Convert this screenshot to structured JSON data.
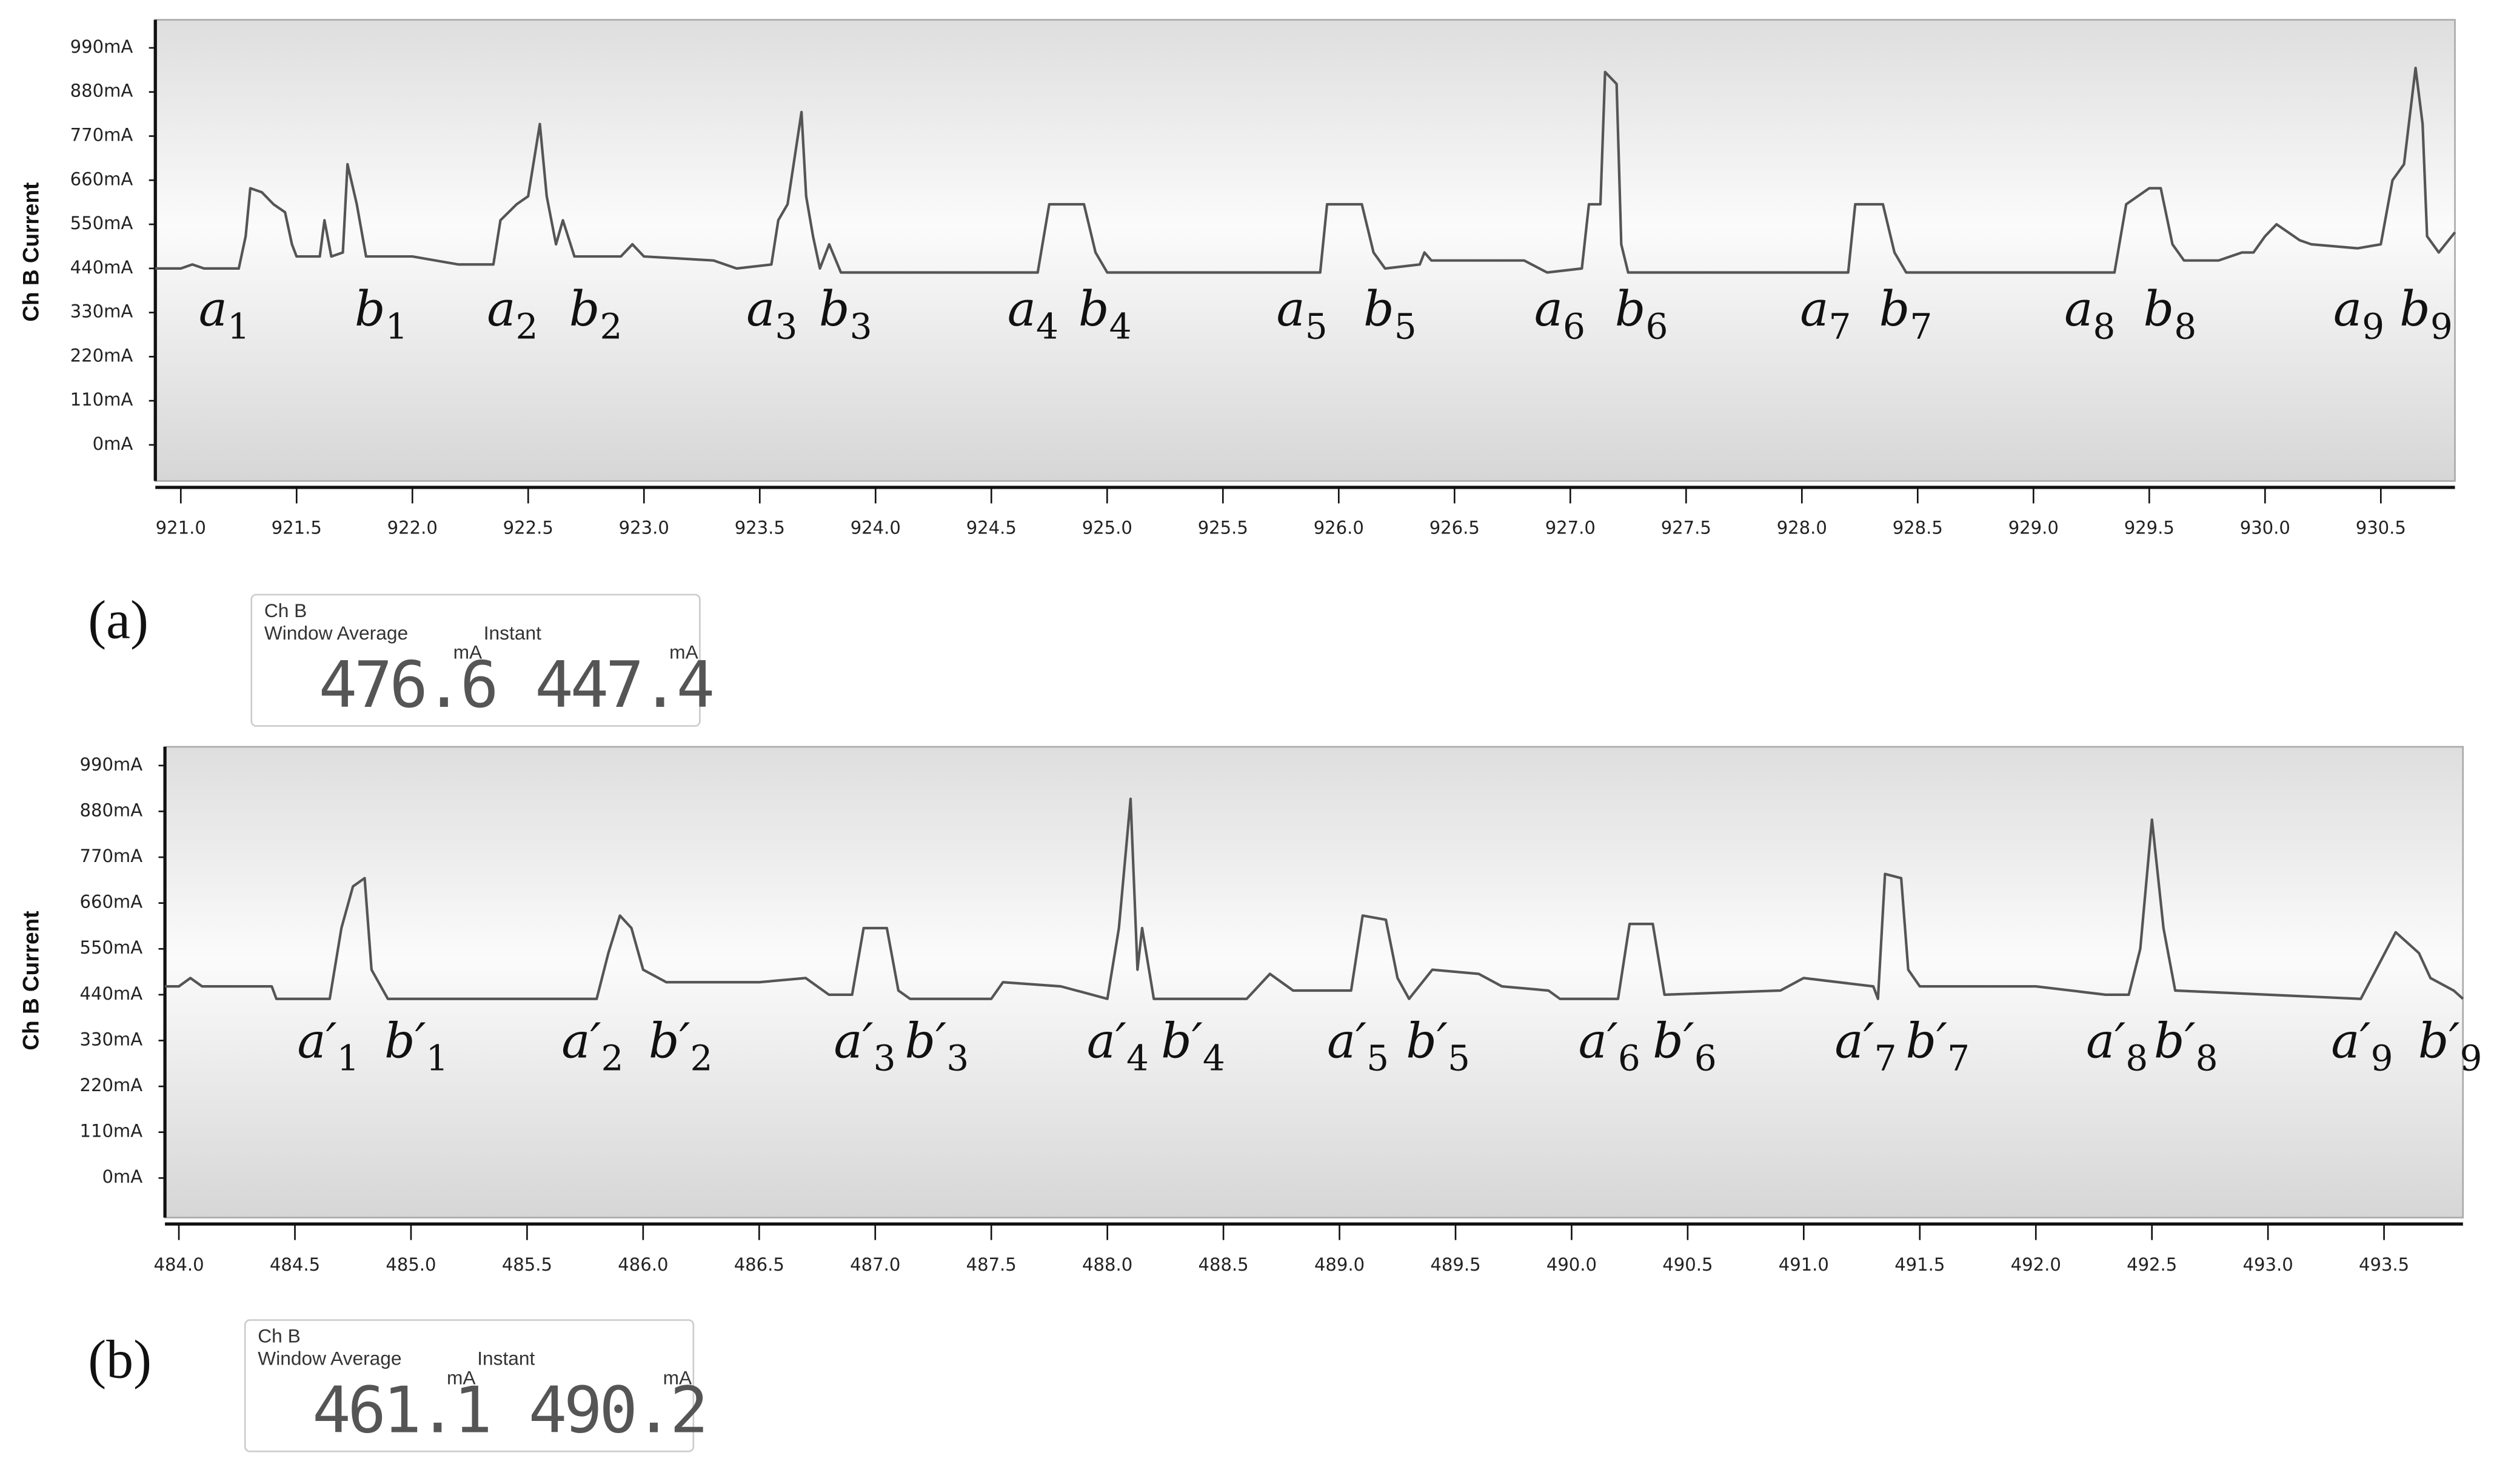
{
  "chart_data": [
    {
      "type": "line",
      "panel_label": "(a)",
      "y_label": "Ch B Current",
      "color": "#555555",
      "ylim": [
        -90,
        1060
      ],
      "yticks": [
        {
          "value": 990,
          "label": "990mA"
        },
        {
          "value": 880,
          "label": "880mA"
        },
        {
          "value": 770,
          "label": "770mA"
        },
        {
          "value": 660,
          "label": "660mA"
        },
        {
          "value": 550,
          "label": "550mA"
        },
        {
          "value": 440,
          "label": "440mA"
        },
        {
          "value": 330,
          "label": "330mA"
        },
        {
          "value": 220,
          "label": "220mA"
        },
        {
          "value": 110,
          "label": "110mA"
        },
        {
          "value": 0,
          "label": "0mA"
        }
      ],
      "xlim": [
        920.89,
        930.82
      ],
      "xticks": [
        {
          "value": 921,
          "label": "921.0"
        },
        921.5,
        {
          "value": 922,
          "label": "922.0"
        },
        922.5,
        {
          "value": 923,
          "label": "923.0"
        },
        923.5,
        {
          "value": 924,
          "label": "924.0"
        },
        924.5,
        {
          "value": 925,
          "label": "925.0"
        },
        925.5,
        {
          "value": 926,
          "label": "926.0"
        },
        926.5,
        {
          "value": 927,
          "label": "927.0"
        },
        927.5,
        {
          "value": 928,
          "label": "928.0"
        },
        928.5,
        {
          "value": 929,
          "label": "929.0"
        },
        929.5,
        {
          "value": 930,
          "label": "930.0"
        },
        930.5
      ],
      "x": [
        920.89,
        921.0,
        921.05,
        921.1,
        921.25,
        921.28,
        921.3,
        921.35,
        921.4,
        921.45,
        921.48,
        921.5,
        921.6,
        921.62,
        921.65,
        921.7,
        921.72,
        921.76,
        921.8,
        922.0,
        922.2,
        922.35,
        922.38,
        922.45,
        922.5,
        922.55,
        922.58,
        922.62,
        922.65,
        922.7,
        922.9,
        922.95,
        923.0,
        923.3,
        923.4,
        923.55,
        923.58,
        923.62,
        923.68,
        923.7,
        923.73,
        923.76,
        923.8,
        923.85,
        924.0,
        924.7,
        924.75,
        924.9,
        924.95,
        925.0,
        925.5,
        925.92,
        925.95,
        926.1,
        926.15,
        926.2,
        926.35,
        926.37,
        926.4,
        926.8,
        926.9,
        927.05,
        927.08,
        927.13,
        927.15,
        927.2,
        927.22,
        927.25,
        928.2,
        928.23,
        928.35,
        928.4,
        928.45,
        929.35,
        929.4,
        929.5,
        929.55,
        929.6,
        929.65,
        929.8,
        929.9,
        929.95,
        930.0,
        930.05,
        930.15,
        930.2,
        930.4,
        930.5,
        930.55,
        930.6,
        930.65,
        930.68,
        930.7,
        930.75,
        930.82
      ],
      "values": [
        440,
        440,
        450,
        440,
        440,
        520,
        640,
        630,
        600,
        580,
        500,
        470,
        470,
        560,
        470,
        480,
        700,
        600,
        470,
        470,
        450,
        450,
        560,
        600,
        620,
        800,
        620,
        500,
        560,
        470,
        470,
        500,
        470,
        460,
        440,
        450,
        560,
        600,
        830,
        620,
        520,
        440,
        500,
        430,
        430,
        430,
        600,
        600,
        480,
        430,
        430,
        430,
        600,
        600,
        480,
        440,
        450,
        480,
        460,
        460,
        430,
        440,
        600,
        600,
        930,
        900,
        500,
        430,
        430,
        600,
        600,
        480,
        430,
        430,
        600,
        640,
        640,
        500,
        460,
        460,
        480,
        480,
        520,
        550,
        510,
        500,
        490,
        500,
        660,
        700,
        940,
        800,
        520,
        480,
        530
      ],
      "annotations": [
        {
          "text": "a",
          "sub": "1"
        },
        {
          "text": "b",
          "sub": "1"
        },
        {
          "text": "a",
          "sub": "2"
        },
        {
          "text": "b",
          "sub": "2"
        },
        {
          "text": "a",
          "sub": "3"
        },
        {
          "text": "b",
          "sub": "3"
        },
        {
          "text": "a",
          "sub": "4"
        },
        {
          "text": "b",
          "sub": "4"
        },
        {
          "text": "a",
          "sub": "5"
        },
        {
          "text": "b",
          "sub": "5"
        },
        {
          "text": "a",
          "sub": "6"
        },
        {
          "text": "b",
          "sub": "6"
        },
        {
          "text": "a",
          "sub": "7"
        },
        {
          "text": "b",
          "sub": "7"
        },
        {
          "text": "a",
          "sub": "8"
        },
        {
          "text": "b",
          "sub": "8"
        },
        {
          "text": "a",
          "sub": "9"
        },
        {
          "text": "b",
          "sub": "9"
        }
      ],
      "readout": {
        "title": "Ch B",
        "average_label": "Window Average",
        "average": 476.6,
        "instant_label": "Instant",
        "instant": 447.4,
        "unit": "mA"
      }
    },
    {
      "type": "line",
      "panel_label": "(b)",
      "y_label": "Ch B Current",
      "color": "#555555",
      "ylim": [
        -95,
        1035
      ],
      "yticks": [
        {
          "value": 990,
          "label": "990mA"
        },
        {
          "value": 880,
          "label": "880mA"
        },
        {
          "value": 770,
          "label": "770mA"
        },
        {
          "value": 660,
          "label": "660mA"
        },
        {
          "value": 550,
          "label": "550mA"
        },
        {
          "value": 440,
          "label": "440mA"
        },
        {
          "value": 330,
          "label": "330mA"
        },
        {
          "value": 220,
          "label": "220mA"
        },
        {
          "value": 110,
          "label": "110mA"
        },
        {
          "value": 0,
          "label": "0mA"
        }
      ],
      "xlim": [
        483.94,
        493.84
      ],
      "xticks": [
        {
          "value": 484,
          "label": "484.0"
        },
        484.5,
        {
          "value": 485,
          "label": "485.0"
        },
        485.5,
        {
          "value": 486,
          "label": "486.0"
        },
        486.5,
        {
          "value": 487,
          "label": "487.0"
        },
        487.5,
        {
          "value": 488,
          "label": "488.0"
        },
        488.5,
        {
          "value": 489,
          "label": "489.0"
        },
        489.5,
        {
          "value": 490,
          "label": "490.0"
        },
        490.5,
        {
          "value": 491,
          "label": "491.0"
        },
        491.5,
        {
          "value": 492,
          "label": "492.0"
        },
        492.5,
        {
          "value": 493,
          "label": "493.0"
        },
        493.5
      ],
      "x": [
        483.94,
        484.0,
        484.05,
        484.1,
        484.4,
        484.42,
        484.65,
        484.7,
        484.75,
        484.8,
        484.83,
        484.9,
        485.8,
        485.85,
        485.9,
        485.95,
        486.0,
        486.1,
        486.5,
        486.7,
        486.8,
        486.9,
        486.95,
        487.05,
        487.1,
        487.15,
        487.5,
        487.55,
        487.8,
        488.0,
        488.05,
        488.1,
        488.13,
        488.15,
        488.2,
        488.6,
        488.7,
        488.8,
        489.05,
        489.1,
        489.2,
        489.25,
        489.3,
        489.4,
        489.6,
        489.7,
        489.9,
        489.95,
        490.2,
        490.25,
        490.35,
        490.4,
        490.9,
        491.0,
        491.3,
        491.32,
        491.35,
        491.42,
        491.45,
        491.5,
        492.0,
        492.3,
        492.4,
        492.45,
        492.5,
        492.55,
        492.6,
        493.4,
        493.55,
        493.65,
        493.7,
        493.8,
        493.84
      ],
      "values": [
        460,
        460,
        480,
        460,
        460,
        430,
        430,
        600,
        700,
        720,
        500,
        430,
        430,
        540,
        630,
        600,
        500,
        470,
        470,
        480,
        440,
        440,
        600,
        600,
        450,
        430,
        430,
        470,
        460,
        430,
        600,
        910,
        500,
        600,
        430,
        430,
        490,
        450,
        450,
        630,
        620,
        480,
        430,
        500,
        490,
        460,
        450,
        430,
        430,
        610,
        610,
        440,
        450,
        480,
        460,
        430,
        730,
        720,
        500,
        460,
        460,
        440,
        440,
        550,
        860,
        600,
        450,
        430,
        590,
        540,
        480,
        450,
        430
      ],
      "annotations": [
        {
          "text": "a′",
          "sub": "1"
        },
        {
          "text": "b′",
          "sub": "1"
        },
        {
          "text": "a′",
          "sub": "2"
        },
        {
          "text": "b′",
          "sub": "2"
        },
        {
          "text": "a′",
          "sub": "3"
        },
        {
          "text": "b′",
          "sub": "3"
        },
        {
          "text": "a′",
          "sub": "4"
        },
        {
          "text": "b′",
          "sub": "4"
        },
        {
          "text": "a′",
          "sub": "5"
        },
        {
          "text": "b′",
          "sub": "5"
        },
        {
          "text": "a′",
          "sub": "6"
        },
        {
          "text": "b′",
          "sub": "6"
        },
        {
          "text": "a′",
          "sub": "7"
        },
        {
          "text": "b′",
          "sub": "7"
        },
        {
          "text": "a′",
          "sub": "8"
        },
        {
          "text": "b′",
          "sub": "8"
        },
        {
          "text": "a′",
          "sub": "9"
        },
        {
          "text": "b′",
          "sub": "9"
        }
      ],
      "readout": {
        "title": "Ch B",
        "average_label": "Window Average",
        "average": 461.1,
        "instant_label": "Instant",
        "instant": 490.2,
        "unit": "mA"
      }
    }
  ]
}
